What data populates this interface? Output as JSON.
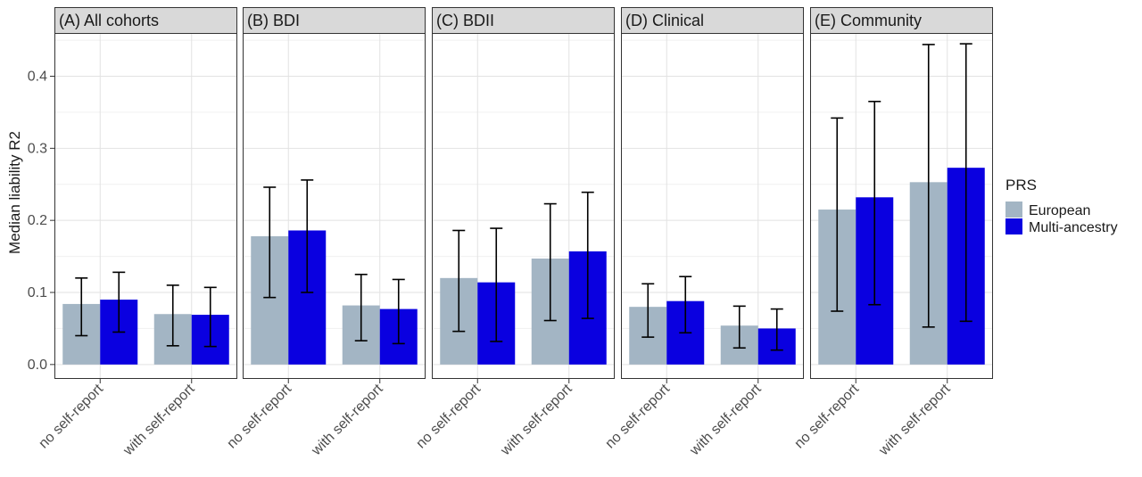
{
  "chart_data": {
    "type": "bar",
    "ylabel": "Median liability R2",
    "xlabel": "",
    "ylim": [
      -0.02,
      0.46
    ],
    "yticks": [
      0.0,
      0.1,
      0.2,
      0.3,
      0.4
    ],
    "ytick_labels": [
      "0.0",
      "0.1",
      "0.2",
      "0.3",
      "0.4"
    ],
    "grid": true,
    "legend": {
      "title": "PRS",
      "placement": "right",
      "entries": [
        {
          "name": "European",
          "color": "#a3b5c4"
        },
        {
          "name": "Multi-ancestry",
          "color": "#0a00e0"
        }
      ]
    },
    "categories": [
      "no self-report",
      "with self-report"
    ],
    "panels": [
      {
        "title": "(A) All cohorts",
        "series": [
          {
            "name": "European",
            "values": [
              0.084,
              0.07
            ],
            "lower": [
              0.04,
              0.026
            ],
            "upper": [
              0.12,
              0.11
            ]
          },
          {
            "name": "Multi-ancestry",
            "values": [
              0.09,
              0.069
            ],
            "lower": [
              0.045,
              0.025
            ],
            "upper": [
              0.128,
              0.107
            ]
          }
        ]
      },
      {
        "title": "(B) BDI",
        "series": [
          {
            "name": "European",
            "values": [
              0.178,
              0.082
            ],
            "lower": [
              0.093,
              0.033
            ],
            "upper": [
              0.246,
              0.125
            ]
          },
          {
            "name": "Multi-ancestry",
            "values": [
              0.186,
              0.077
            ],
            "lower": [
              0.1,
              0.029
            ],
            "upper": [
              0.256,
              0.118
            ]
          }
        ]
      },
      {
        "title": "(C) BDII",
        "series": [
          {
            "name": "European",
            "values": [
              0.12,
              0.147
            ],
            "lower": [
              0.046,
              0.061
            ],
            "upper": [
              0.186,
              0.223
            ]
          },
          {
            "name": "Multi-ancestry",
            "values": [
              0.114,
              0.157
            ],
            "lower": [
              0.032,
              0.064
            ],
            "upper": [
              0.189,
              0.239
            ]
          }
        ]
      },
      {
        "title": "(D) Clinical",
        "series": [
          {
            "name": "European",
            "values": [
              0.08,
              0.054
            ],
            "lower": [
              0.038,
              0.023
            ],
            "upper": [
              0.112,
              0.081
            ]
          },
          {
            "name": "Multi-ancestry",
            "values": [
              0.088,
              0.05
            ],
            "lower": [
              0.044,
              0.02
            ],
            "upper": [
              0.122,
              0.077
            ]
          }
        ]
      },
      {
        "title": "(E) Community",
        "series": [
          {
            "name": "European",
            "values": [
              0.215,
              0.253
            ],
            "lower": [
              0.074,
              0.052
            ],
            "upper": [
              0.342,
              0.444
            ]
          },
          {
            "name": "Multi-ancestry",
            "values": [
              0.232,
              0.273
            ],
            "lower": [
              0.083,
              0.06
            ],
            "upper": [
              0.365,
              0.445
            ]
          }
        ]
      }
    ]
  }
}
